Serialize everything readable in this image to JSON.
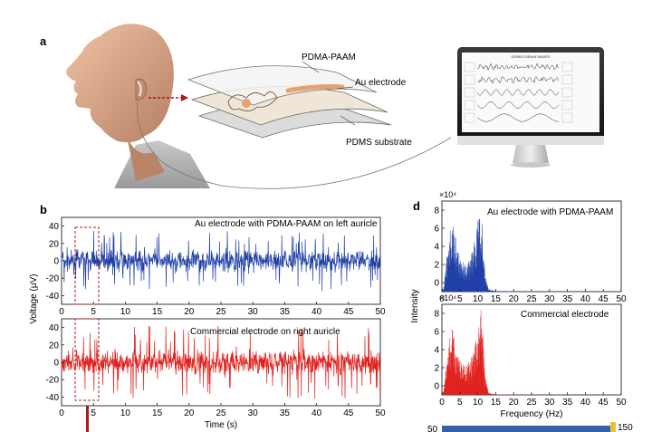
{
  "panel_a": {
    "letter": "a",
    "labels": {
      "top": "PDMA-PAAM",
      "middle": "Au electrode",
      "bottom": "PDMS substrate"
    },
    "monitor_header": "DEMUS BRAIN WAVES"
  },
  "panel_b": {
    "letter": "b",
    "ylabel": "Voltage (μV)",
    "xlabel": "Time (s)",
    "top_label": "Au electrode with PDMA-PAAM on left auricle",
    "bottom_label": "Commercial electrode on right auricle",
    "y_ticks": [
      "40",
      "20",
      "0",
      "-20",
      "-40"
    ],
    "x_ticks": [
      "0",
      "5",
      "10",
      "15",
      "20",
      "25",
      "30",
      "35",
      "40",
      "45",
      "50"
    ]
  },
  "panel_d": {
    "letter": "d",
    "ylabel": "Intensity",
    "xlabel": "Frequency (Hz)",
    "multiplier_top": "×10⁴",
    "multiplier_bottom": "×10⁴",
    "top_label": "Au electrode with PDMA-PAAM",
    "bottom_label": "Commercial electrode",
    "y_ticks": [
      "8",
      "6",
      "4",
      "2",
      "0"
    ],
    "x_ticks": [
      "0",
      "5",
      "10",
      "15",
      "20",
      "25",
      "30",
      "35",
      "40",
      "45",
      "50"
    ]
  },
  "bottom_strip": {
    "left_value": "50",
    "right_value": "150"
  },
  "colors": {
    "blue": "#1f3fa6",
    "red": "#e0201c",
    "dash": "#b0181b"
  },
  "chart_data": [
    {
      "type": "line",
      "title": "Au electrode with PDMA-PAAM on left auricle",
      "xlabel": "Time (s)",
      "ylabel": "Voltage (μV)",
      "xlim": [
        0,
        50
      ],
      "ylim": [
        -50,
        50
      ],
      "series": [
        {
          "color": "#1f3fa6",
          "amplitude": 12,
          "peaks": 35
        }
      ]
    },
    {
      "type": "line",
      "title": "Commercial electrode on right auricle",
      "xlabel": "Time (s)",
      "ylabel": "Voltage (μV)",
      "xlim": [
        0,
        50
      ],
      "ylim": [
        -50,
        50
      ],
      "series": [
        {
          "color": "#e0201c",
          "amplitude": 14,
          "peaks": 42
        }
      ]
    },
    {
      "type": "area",
      "title": "Au electrode with PDMA-PAAM",
      "xlabel": "Frequency (Hz)",
      "ylabel": "Intensity",
      "xlim": [
        0,
        50
      ],
      "ylim": [
        0,
        8
      ],
      "x": [
        0.5,
        1,
        2,
        3,
        4,
        5,
        6,
        7,
        8,
        9,
        10,
        11,
        12,
        13,
        15,
        20,
        30,
        50
      ],
      "values": [
        0.3,
        2.0,
        5.6,
        6.4,
        4.4,
        3.4,
        2.6,
        2.2,
        3.2,
        4.5,
        6.2,
        7.3,
        1.6,
        0.2,
        0.05,
        0.02,
        0.01,
        0.0
      ]
    },
    {
      "type": "area",
      "title": "Commercial electrode",
      "xlabel": "Frequency (Hz)",
      "ylabel": "Intensity",
      "xlim": [
        0,
        50
      ],
      "ylim": [
        0,
        8
      ],
      "x": [
        0.5,
        1,
        2,
        3,
        4,
        5,
        6,
        7,
        8,
        9,
        10,
        11,
        12,
        13,
        15,
        20,
        30,
        50
      ],
      "values": [
        0.3,
        2.2,
        5.2,
        6.0,
        4.0,
        3.4,
        2.8,
        2.6,
        3.2,
        4.2,
        6.0,
        7.9,
        1.8,
        0.2,
        0.05,
        0.02,
        0.01,
        0.0
      ]
    }
  ]
}
